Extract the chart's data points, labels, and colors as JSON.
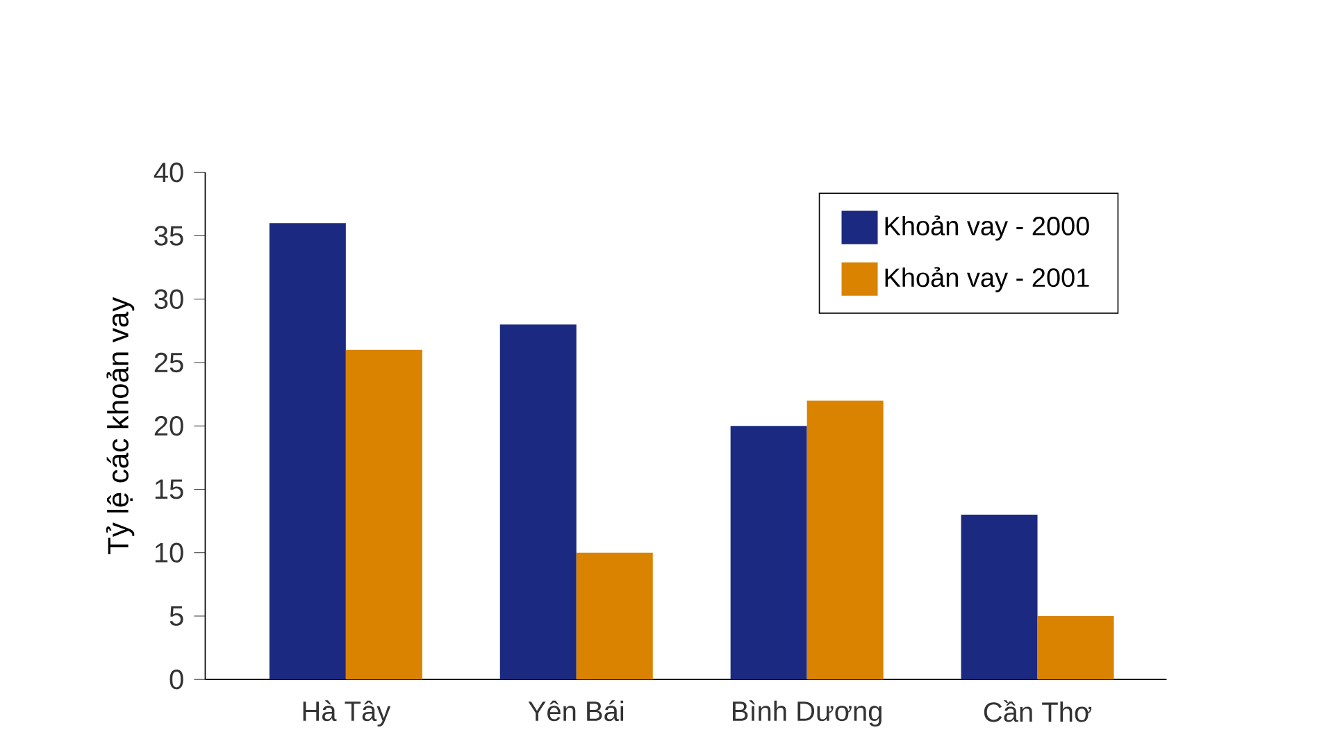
{
  "chart_data": {
    "type": "bar",
    "ylabel": "Tỷ lệ các khoản vay",
    "categories": [
      "Hà Tây",
      "Yên Bái",
      "Bình Dương",
      "Cần Thơ"
    ],
    "series": [
      {
        "name": "Khoản vay - 2000",
        "color": "#1b2a80",
        "values": [
          36,
          28,
          20,
          13
        ]
      },
      {
        "name": "Khoản vay - 2001",
        "color": "#d98300",
        "values": [
          26,
          10,
          22,
          5
        ]
      }
    ],
    "ylim": [
      0,
      40
    ],
    "yticks": [
      0,
      5,
      10,
      15,
      20,
      25,
      30,
      35,
      40
    ],
    "legend": "top right"
  }
}
